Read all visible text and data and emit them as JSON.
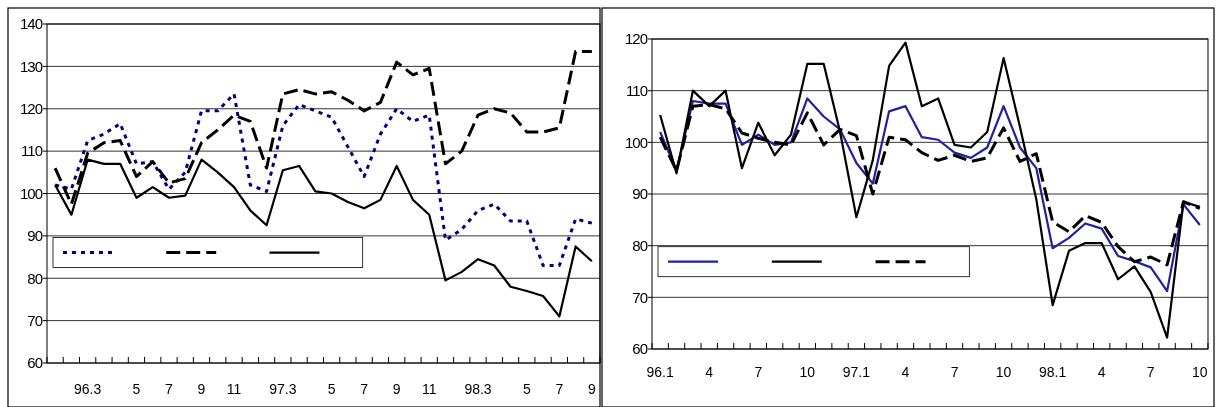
{
  "chart_data": [
    {
      "type": "line",
      "categories": [
        null,
        null,
        "96.3",
        null,
        null,
        "5",
        null,
        "7",
        null,
        "9",
        null,
        "11",
        null,
        null,
        "97.3",
        null,
        null,
        "5",
        null,
        "7",
        null,
        "9",
        null,
        "11",
        null,
        null,
        "98.3",
        null,
        null,
        "5",
        null,
        "7",
        null,
        "9"
      ],
      "ylim": [
        60,
        140
      ],
      "yticks": [
        60,
        70,
        80,
        90,
        100,
        110,
        120,
        130,
        140
      ],
      "grid": "y",
      "series": [
        {
          "color": "#000080",
          "line_style": "dotted",
          "values": [
            102,
            101,
            112.5,
            114,
            116.5,
            107,
            107.5,
            101,
            105,
            119.5,
            119.5,
            123.5,
            102,
            100.5,
            116,
            121,
            119.5,
            118,
            111,
            104,
            114,
            120,
            117,
            118.5,
            89,
            91.5,
            96,
            97.5,
            93.5,
            93.5,
            83,
            83,
            94,
            93
          ]
        },
        {
          "color": "#000000",
          "line_style": "dashed",
          "values": [
            106,
            97.5,
            109.5,
            112,
            112.5,
            104,
            107.5,
            102.5,
            103.5,
            112,
            115,
            118.5,
            117,
            106,
            123.5,
            124.5,
            123.5,
            124,
            122,
            119.5,
            121.5,
            131,
            128,
            129.5,
            107,
            110,
            118.5,
            120,
            119,
            114.5,
            114.5,
            115.5,
            133.5,
            133.5
          ]
        },
        {
          "color": "#000000",
          "line_style": "solid",
          "values": [
            102,
            95,
            108,
            107,
            107,
            99,
            101.5,
            99,
            99.5,
            108,
            105,
            101.5,
            96,
            92.5,
            105.5,
            106.5,
            100.5,
            100,
            98,
            96.5,
            98.5,
            106.5,
            98.5,
            95,
            79.5,
            81.5,
            84.5,
            83,
            78,
            77,
            75.8,
            71,
            87.5,
            84
          ]
        }
      ]
    },
    {
      "type": "line",
      "categories": [
        "96.1",
        null,
        null,
        "4",
        null,
        null,
        "7",
        null,
        null,
        "10",
        null,
        null,
        "97.1",
        null,
        null,
        "4",
        null,
        null,
        "7",
        null,
        null,
        "10",
        null,
        null,
        "98.1",
        null,
        null,
        "4",
        null,
        null,
        "7",
        null,
        null,
        "10"
      ],
      "ylim": [
        60,
        120
      ],
      "yticks": [
        60,
        70,
        80,
        90,
        100,
        110,
        120
      ],
      "grid": "y",
      "series": [
        {
          "color": "#2020a0",
          "line_style": "solid",
          "values": [
            102,
            94.5,
            108,
            107.5,
            107.5,
            99.5,
            101.5,
            99.5,
            100,
            108.5,
            105,
            102.5,
            96,
            92,
            106,
            107,
            101,
            100.5,
            98,
            97,
            99,
            107,
            99,
            95,
            79.5,
            81.5,
            84.3,
            83.3,
            78,
            77,
            75.8,
            71.2,
            88,
            84
          ]
        },
        {
          "color": "#000000",
          "line_style": "solid",
          "values": [
            105.3,
            94,
            110,
            107,
            110,
            95,
            103.8,
            97.5,
            101.5,
            115.2,
            115.2,
            102,
            85.5,
            96.5,
            114.8,
            119.3,
            107,
            108.5,
            99.5,
            99,
            102,
            116.3,
            103,
            89,
            68.5,
            79,
            80.5,
            80.5,
            73.5,
            76,
            71,
            62.2,
            88.5,
            87.5
          ]
        },
        {
          "color": "#000000",
          "line_style": "dashed",
          "values": [
            101,
            94.5,
            107,
            107.3,
            106.5,
            101.8,
            100.8,
            100,
            99.5,
            105.7,
            99.5,
            102.5,
            101.3,
            90,
            101,
            100.5,
            98,
            96.5,
            97.5,
            96.3,
            97,
            102.8,
            96.3,
            97.8,
            84.6,
            82.7,
            85.8,
            84.5,
            79.8,
            76.9,
            77.8,
            76.3,
            88.5,
            87.2
          ]
        }
      ]
    }
  ]
}
